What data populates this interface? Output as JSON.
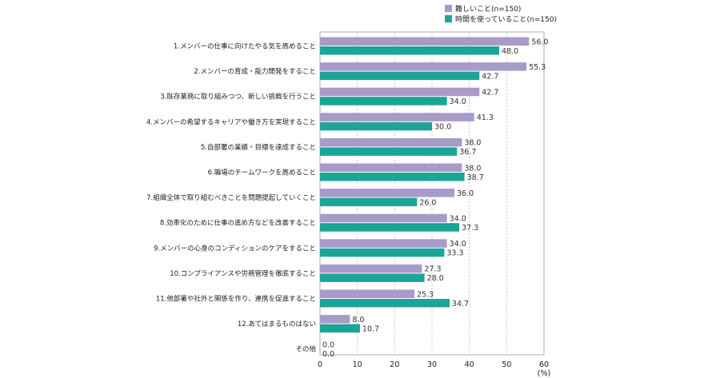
{
  "chart_data": {
    "type": "bar",
    "orientation": "horizontal",
    "categories": [
      "1.メンバーの仕事に向けたやる気を高めること",
      "2.メンバーの育成・能力開発をすること",
      "3.既存業務に取り組みつつ、新しい挑戦を行うこと",
      "4.メンバーの希望するキャリアや働き方を実現すること",
      "5.自部署の業績・目標を達成すること",
      "6.職場のチームワークを高めること",
      "7.組織全体で取り組むべきことを問題提起していくこと",
      "8.効率化のために仕事の進め方などを改善すること",
      "9.メンバーの心身のコンディションのケアをすること",
      "10.コンプライアンスや労務管理を徹底すること",
      "11.他部署や社外と関係を作り、連携を促進すること",
      "12.あてはまるものはない",
      "その他"
    ],
    "series": [
      {
        "name": "難しいこと(n=150)",
        "color": "#a89bc8",
        "values": [
          56.0,
          55.3,
          42.7,
          41.3,
          38.0,
          38.0,
          36.0,
          34.0,
          34.0,
          27.3,
          25.3,
          8.0,
          0.0
        ]
      },
      {
        "name": "時間を使っていること(n=150)",
        "color": "#1aa596",
        "values": [
          48.0,
          42.7,
          34.0,
          30.0,
          36.7,
          38.7,
          26.0,
          37.3,
          33.3,
          28.0,
          34.7,
          10.7,
          0.0
        ]
      }
    ],
    "xlim": [
      0,
      60
    ],
    "xticks": [
      0,
      10,
      20,
      30,
      40,
      50,
      60
    ],
    "xunit": "(%)",
    "grid": "vertical dashed",
    "legend_position": "top-right"
  }
}
